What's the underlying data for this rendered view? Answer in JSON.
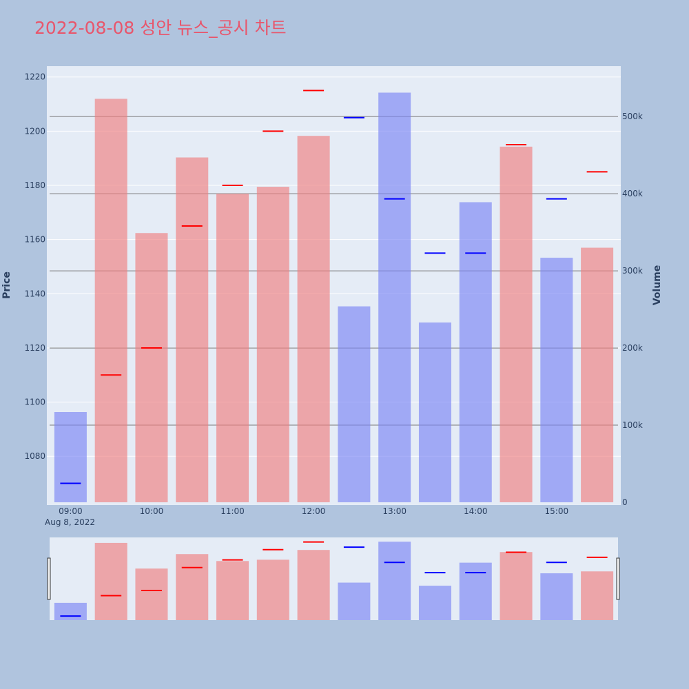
{
  "chart_data": {
    "type": "bar",
    "title": "2022-08-08 성안 뉴스_공시 차트",
    "title_color": "#e8566c",
    "ylabel_left": "Price",
    "ylabel_right": "Volume",
    "date_label": "Aug 8, 2022",
    "x_ticks": [
      "09:00",
      "10:00",
      "11:00",
      "12:00",
      "13:00",
      "14:00",
      "15:00"
    ],
    "price_ticks": [
      "1080",
      "1100",
      "1120",
      "1140",
      "1160",
      "1180",
      "1200",
      "1220"
    ],
    "volume_ticks": [
      "0",
      "100k",
      "200k",
      "300k",
      "400k",
      "500k"
    ],
    "price_range": [
      1062,
      1224
    ],
    "volume_range": [
      0,
      560000
    ],
    "up_color": "#f08080",
    "down_color": "#7b86f5",
    "marker_up_color": "#ff0000",
    "marker_down_color": "#0000ff",
    "series": [
      {
        "time": "09:00",
        "volume": 117000,
        "price": 1070,
        "direction": "down"
      },
      {
        "time": "09:30",
        "volume": 523000,
        "price": 1110,
        "direction": "up"
      },
      {
        "time": "10:00",
        "volume": 349000,
        "price": 1120,
        "direction": "up"
      },
      {
        "time": "10:30",
        "volume": 447000,
        "price": 1165,
        "direction": "up"
      },
      {
        "time": "11:00",
        "volume": 400000,
        "price": 1180,
        "direction": "up"
      },
      {
        "time": "11:30",
        "volume": 409000,
        "price": 1200,
        "direction": "up"
      },
      {
        "time": "12:00",
        "volume": 475000,
        "price": 1215,
        "direction": "up"
      },
      {
        "time": "12:30",
        "volume": 254000,
        "price": 1205,
        "direction": "down"
      },
      {
        "time": "13:00",
        "volume": 531000,
        "price": 1175,
        "direction": "down"
      },
      {
        "time": "13:30",
        "volume": 233000,
        "price": 1155,
        "direction": "down"
      },
      {
        "time": "14:00",
        "volume": 389000,
        "price": 1155,
        "direction": "down"
      },
      {
        "time": "14:30",
        "volume": 461000,
        "price": 1195,
        "direction": "up"
      },
      {
        "time": "15:00",
        "volume": 317000,
        "price": 1175,
        "direction": "down"
      },
      {
        "time": "15:30",
        "volume": 330000,
        "price": 1185,
        "direction": "up"
      }
    ]
  }
}
